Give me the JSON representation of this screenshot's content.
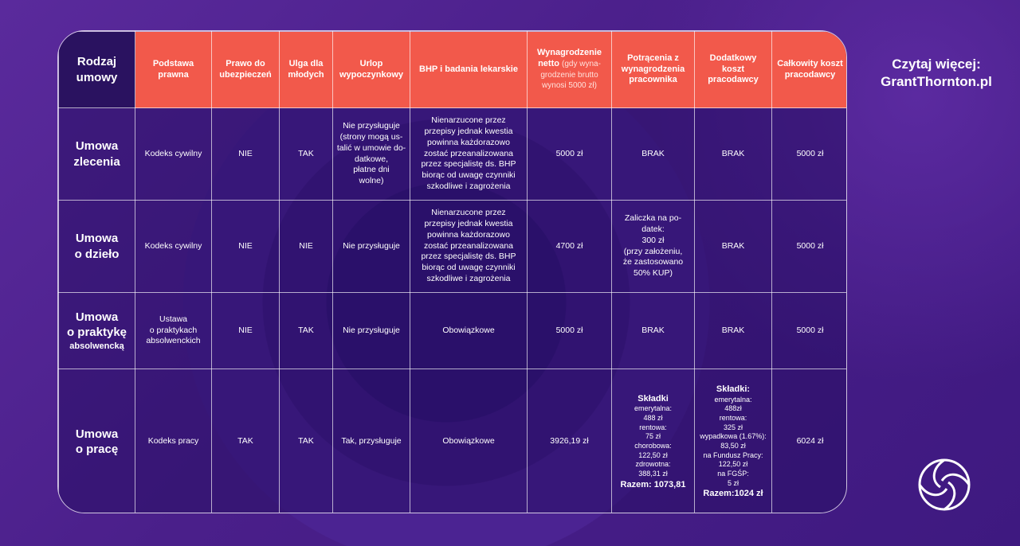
{
  "header": {
    "corner": [
      "Rodzaj",
      "umowy"
    ],
    "columns": [
      {
        "lines": [
          "Podstawa",
          "prawna"
        ]
      },
      {
        "lines": [
          "Prawo do",
          "ubezpieczeń"
        ]
      },
      {
        "lines": [
          "Ulga",
          "dla",
          "młodych"
        ]
      },
      {
        "lines": [
          "Urlop",
          "wypoczynkowy"
        ]
      },
      {
        "lines": [
          "BHP",
          "i badania",
          "lekarskie"
        ]
      },
      {
        "lines": [
          "Wynagrodzenie",
          "netto"
        ],
        "sub": [
          "(gdy wyna-",
          "grodzenie brutto",
          "wynosi 5000 zł)"
        ]
      },
      {
        "lines": [
          "Potrącenia",
          "z wynagrodzenia",
          "pracownika"
        ]
      },
      {
        "lines": [
          "Dodatkowy",
          "koszt",
          "pracodawcy"
        ]
      },
      {
        "lines": [
          "Całkowity",
          "koszt",
          "pracodawcy"
        ]
      }
    ]
  },
  "rows": [
    {
      "type": [
        "Umowa",
        "zlecenia"
      ],
      "basis": "Kodeks cywilny",
      "insurance": "NIE",
      "youth_relief": "TAK",
      "leave": [
        "Nie przysługuje",
        "(strony mogą us-",
        "talić w umowie do-",
        "datkowe,",
        "płatne dni",
        "wolne)"
      ],
      "bhp": [
        "Nienarzucone przez",
        "przepisy jednak kwestia",
        "powinna każdorazowo",
        "zostać przeanalizowana",
        "przez specjalistę ds. BHP",
        "biorąc od uwagę czynniki",
        "szkodliwe i zagrożenia"
      ],
      "net": "5000 zł",
      "deductions": "BRAK",
      "extra_cost": "BRAK",
      "total": "5000 zł"
    },
    {
      "type": [
        "Umowa",
        "o dzieło"
      ],
      "basis": "Kodeks cywilny",
      "insurance": "NIE",
      "youth_relief": "NIE",
      "leave": [
        "Nie przysługuje"
      ],
      "bhp": [
        "Nienarzucone przez",
        "przepisy jednak kwestia",
        "powinna każdorazowo",
        "zostać przeanalizowana",
        "przez specjalistę ds. BHP",
        "biorąc od uwagę czynniki",
        "szkodliwe i zagrożenia"
      ],
      "net": "4700 zł",
      "deductions_lines": [
        "Zaliczka na po-",
        "datek:",
        "300 zł",
        "(przy założeniu,",
        "że zastosowano",
        "50% KUP)"
      ],
      "extra_cost": "BRAK",
      "total": "5000 zł"
    },
    {
      "type": [
        "Umowa",
        "o praktykę"
      ],
      "type_small": "absolwencką",
      "basis_lines": [
        "Ustawa",
        "o praktykach",
        "absolwenckich"
      ],
      "insurance": "NIE",
      "youth_relief": "TAK",
      "leave": [
        "Nie przysługuje"
      ],
      "bhp_single": "Obowiązkowe",
      "net": "5000 zł",
      "deductions": "BRAK",
      "extra_cost": "BRAK",
      "total": "5000 zł"
    },
    {
      "type": [
        "Umowa",
        "o pracę"
      ],
      "basis": "Kodeks pracy",
      "insurance": "TAK",
      "youth_relief": "TAK",
      "leave": [
        "Tak, przysługuje"
      ],
      "bhp_single": "Obowiązkowe",
      "net": "3926,19 zł",
      "deductions_title": "Składki",
      "deductions_items": [
        "emerytalna:",
        "488 zł",
        "rentowa:",
        "75 zł",
        "chorobowa:",
        "122,50 zł",
        "zdrowotna:",
        "388,31 zł"
      ],
      "deductions_total": "Razem: 1073,81",
      "extra_title": "Składki:",
      "extra_items": [
        "emerytalna:",
        "488zł",
        "rentowa:",
        "325 zł",
        "wypadkowa (1.67%):",
        "83,50 zł",
        "na Fundusz Pracy:",
        "122,50 zł",
        "na FGŚP:",
        "5 zł"
      ],
      "extra_total": "Razem:1024 zł",
      "total": "6024 zł"
    }
  ],
  "side": {
    "readmore_label": "Czytaj więcej:",
    "readmore_link": "GrantThornton.pl"
  },
  "colors": {
    "header_bg": "#f2594b",
    "corner_bg": "#2a1260",
    "page_bg": "#4a1f86"
  }
}
